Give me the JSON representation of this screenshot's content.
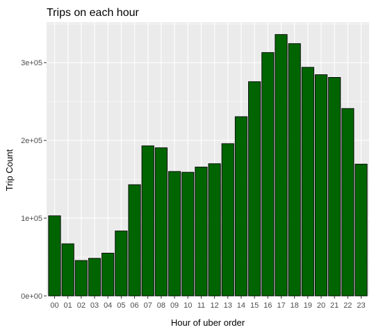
{
  "chart_data": {
    "type": "bar",
    "title": "Trips on each hour",
    "xlabel": "Hour of uber order",
    "ylabel": "Trip Count",
    "categories": [
      "00",
      "01",
      "02",
      "03",
      "04",
      "05",
      "06",
      "07",
      "08",
      "09",
      "10",
      "11",
      "12",
      "13",
      "14",
      "15",
      "16",
      "17",
      "18",
      "19",
      "20",
      "21",
      "22",
      "23"
    ],
    "values": [
      103000,
      67000,
      45500,
      48300,
      55000,
      83500,
      143000,
      193000,
      190500,
      160000,
      159000,
      165700,
      170000,
      195800,
      230500,
      275500,
      313000,
      336200,
      324500,
      294000,
      284500,
      281000,
      241000,
      169500
    ],
    "ylim": [
      0,
      352000
    ],
    "yticks": [
      {
        "value": 0,
        "label": "0e+00"
      },
      {
        "value": 100000,
        "label": "1e+05"
      },
      {
        "value": 200000,
        "label": "2e+05"
      },
      {
        "value": 300000,
        "label": "3e+05"
      }
    ],
    "grid": true,
    "legend": "none",
    "colors": {
      "bar_fill": "#006400",
      "bar_outline": "#000000",
      "panel_background": "#ebebeb",
      "grid": "#ffffff"
    }
  }
}
